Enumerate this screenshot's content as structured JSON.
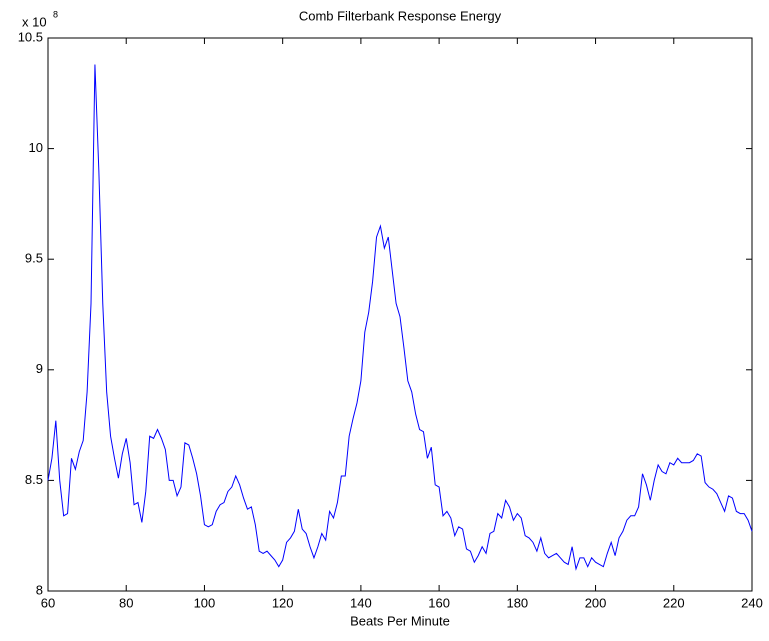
{
  "chart_data": {
    "type": "line",
    "title": "Comb Filterbank Response Energy",
    "xlabel": "Beats Per Minute",
    "y_scale_base": "x 10",
    "y_scale_exponent": "8",
    "color": "#0000ff",
    "xlim": [
      60,
      240
    ],
    "ylim": [
      8,
      10.5
    ],
    "xticks": [
      60,
      80,
      100,
      120,
      140,
      160,
      180,
      200,
      220,
      240
    ],
    "yticks": [
      8,
      8.5,
      9,
      9.5,
      10,
      10.5
    ],
    "x": [
      60,
      61,
      62,
      63,
      64,
      65,
      66,
      67,
      68,
      69,
      70,
      71,
      72,
      73,
      74,
      75,
      76,
      77,
      78,
      79,
      80,
      81,
      82,
      83,
      84,
      85,
      86,
      87,
      88,
      89,
      90,
      91,
      92,
      93,
      94,
      95,
      96,
      97,
      98,
      99,
      100,
      101,
      102,
      103,
      104,
      105,
      106,
      107,
      108,
      109,
      110,
      111,
      112,
      113,
      114,
      115,
      116,
      117,
      118,
      119,
      120,
      121,
      122,
      123,
      124,
      125,
      126,
      127,
      128,
      129,
      130,
      131,
      132,
      133,
      134,
      135,
      136,
      137,
      138,
      139,
      140,
      141,
      142,
      143,
      144,
      145,
      146,
      147,
      148,
      149,
      150,
      151,
      152,
      153,
      154,
      155,
      156,
      157,
      158,
      159,
      160,
      161,
      162,
      163,
      164,
      165,
      166,
      167,
      168,
      169,
      170,
      171,
      172,
      173,
      174,
      175,
      176,
      177,
      178,
      179,
      180,
      181,
      182,
      183,
      184,
      185,
      186,
      187,
      188,
      189,
      190,
      191,
      192,
      193,
      194,
      195,
      196,
      197,
      198,
      199,
      200,
      201,
      202,
      203,
      204,
      205,
      206,
      207,
      208,
      209,
      210,
      211,
      212,
      213,
      214,
      215,
      216,
      217,
      218,
      219,
      220,
      221,
      222,
      223,
      224,
      225,
      226,
      227,
      228,
      229,
      230,
      231,
      232,
      233,
      234,
      235,
      236,
      237,
      238,
      239,
      240
    ],
    "values": [
      8.5,
      8.6,
      8.77,
      8.5,
      8.34,
      8.35,
      8.6,
      8.55,
      8.63,
      8.68,
      8.9,
      9.3,
      10.38,
      9.9,
      9.3,
      8.9,
      8.7,
      8.6,
      8.51,
      8.62,
      8.69,
      8.58,
      8.39,
      8.4,
      8.31,
      8.45,
      8.7,
      8.69,
      8.73,
      8.69,
      8.64,
      8.5,
      8.5,
      8.43,
      8.47,
      8.67,
      8.66,
      8.6,
      8.53,
      8.43,
      8.3,
      8.29,
      8.3,
      8.36,
      8.39,
      8.4,
      8.45,
      8.47,
      8.52,
      8.48,
      8.42,
      8.37,
      8.38,
      8.3,
      8.18,
      8.17,
      8.18,
      8.16,
      8.14,
      8.11,
      8.14,
      8.22,
      8.24,
      8.27,
      8.37,
      8.28,
      8.26,
      8.2,
      8.15,
      8.2,
      8.26,
      8.23,
      8.36,
      8.33,
      8.4,
      8.52,
      8.52,
      8.7,
      8.78,
      8.85,
      8.95,
      9.17,
      9.26,
      9.4,
      9.6,
      9.65,
      9.55,
      9.6,
      9.45,
      9.3,
      9.24,
      9.1,
      8.95,
      8.9,
      8.8,
      8.73,
      8.72,
      8.6,
      8.65,
      8.48,
      8.47,
      8.34,
      8.36,
      8.33,
      8.25,
      8.29,
      8.28,
      8.19,
      8.18,
      8.13,
      8.16,
      8.2,
      8.17,
      8.26,
      8.27,
      8.35,
      8.33,
      8.41,
      8.38,
      8.32,
      8.35,
      8.33,
      8.25,
      8.24,
      8.22,
      8.18,
      8.24,
      8.17,
      8.15,
      8.16,
      8.17,
      8.15,
      8.13,
      8.12,
      8.2,
      8.1,
      8.15,
      8.15,
      8.11,
      8.15,
      8.13,
      8.12,
      8.11,
      8.17,
      8.22,
      8.16,
      8.24,
      8.27,
      8.32,
      8.34,
      8.34,
      8.38,
      8.53,
      8.48,
      8.41,
      8.5,
      8.57,
      8.54,
      8.53,
      8.58,
      8.57,
      8.6,
      8.58,
      8.58,
      8.58,
      8.59,
      8.62,
      8.61,
      8.49,
      8.47,
      8.46,
      8.44,
      8.4,
      8.36,
      8.43,
      8.42,
      8.36,
      8.35,
      8.35,
      8.32,
      8.27
    ]
  }
}
